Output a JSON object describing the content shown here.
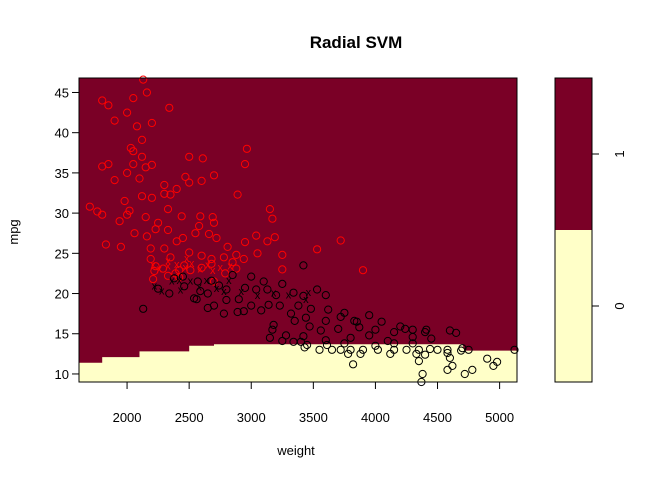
{
  "chart_data": {
    "type": "scatter",
    "title": "Radial SVM",
    "xlabel": "weight",
    "ylabel": "mpg",
    "xlim": [
      1613,
      5140
    ],
    "ylim": [
      9.0,
      46.8
    ],
    "x_ticks": [
      "2000",
      "2500",
      "3000",
      "3500",
      "4000",
      "4500",
      "5000"
    ],
    "y_ticks": [
      "10",
      "15",
      "20",
      "25",
      "30",
      "35",
      "40",
      "45"
    ],
    "grid": false,
    "colors": {
      "class_1_region": "#7a0026",
      "class_0_region": "#ffffc8",
      "class_1_points": "#ff0000",
      "class_0_points": "#000000"
    },
    "decision_boundary": [
      [
        1613,
        11.4
      ],
      [
        1800,
        11.4
      ],
      [
        1800,
        12.1
      ],
      [
        2100,
        12.1
      ],
      [
        2100,
        12.8
      ],
      [
        2500,
        12.8
      ],
      [
        2500,
        13.5
      ],
      [
        2700,
        13.5
      ],
      [
        2700,
        13.7
      ],
      [
        4700,
        13.7
      ],
      [
        4720,
        12.9
      ],
      [
        5140,
        12.9
      ]
    ],
    "colorbar": {
      "labels": [
        "0",
        "1"
      ],
      "split_fraction": 0.5
    },
    "series": [
      {
        "label": "1",
        "support_vectors": "x",
        "points": [
          [
            1800,
            44
          ],
          [
            1850,
            43.4
          ],
          [
            1900,
            41.5
          ],
          [
            2050,
            44.3
          ],
          [
            2130,
            46.6
          ],
          [
            2160,
            45
          ],
          [
            2000,
            42.5
          ],
          [
            2080,
            40.8
          ],
          [
            2120,
            39.1
          ],
          [
            2200,
            41.2
          ],
          [
            2340,
            43.1
          ],
          [
            2030,
            38.1
          ],
          [
            2050,
            37.7
          ],
          [
            2120,
            37
          ],
          [
            1850,
            36.1
          ],
          [
            1800,
            35.8
          ],
          [
            1900,
            34.1
          ],
          [
            2000,
            35
          ],
          [
            2050,
            36.1
          ],
          [
            2100,
            34.3
          ],
          [
            2150,
            35.7
          ],
          [
            2200,
            36
          ],
          [
            2500,
            37
          ],
          [
            2610,
            36.8
          ],
          [
            2950,
            36.1
          ],
          [
            2965,
            38
          ],
          [
            2470,
            34.5
          ],
          [
            2500,
            33.8
          ],
          [
            2600,
            34
          ],
          [
            2700,
            34.7
          ],
          [
            2300,
            33.5
          ],
          [
            2400,
            33
          ],
          [
            2120,
            32.1
          ],
          [
            2200,
            31.9
          ],
          [
            2300,
            32.4
          ],
          [
            2350,
            32.3
          ],
          [
            1980,
            31.5
          ],
          [
            2020,
            30.3
          ],
          [
            2000,
            29.8
          ],
          [
            1940,
            29
          ],
          [
            1800,
            29.8
          ],
          [
            1760,
            30.2
          ],
          [
            1700,
            30.8
          ],
          [
            2150,
            29.5
          ],
          [
            2250,
            28.8
          ],
          [
            2330,
            30.5
          ],
          [
            2440,
            29.6
          ],
          [
            2590,
            29.6
          ],
          [
            2580,
            28.4
          ],
          [
            2690,
            29.5
          ],
          [
            2700,
            28.8
          ],
          [
            2890,
            32.3
          ],
          [
            3150,
            30.5
          ],
          [
            3170,
            29.3
          ],
          [
            3190,
            27
          ],
          [
            3130,
            26.5
          ],
          [
            2060,
            27.5
          ],
          [
            2160,
            27.1
          ],
          [
            2230,
            28
          ],
          [
            2330,
            27.9
          ],
          [
            2400,
            26.5
          ],
          [
            2450,
            26.9
          ],
          [
            2550,
            27.5
          ],
          [
            2660,
            27.4
          ],
          [
            2720,
            26.9
          ],
          [
            2810,
            25.8
          ],
          [
            2950,
            26.4
          ],
          [
            3040,
            27.2
          ],
          [
            1830,
            26.1
          ],
          [
            1950,
            25.8
          ],
          [
            2190,
            25.6
          ],
          [
            2300,
            25.6
          ],
          [
            2350,
            24.5
          ],
          [
            2500,
            25.1
          ],
          [
            2600,
            24.7
          ],
          [
            2680,
            24.3
          ],
          [
            2780,
            24.5
          ],
          [
            2880,
            24.8
          ],
          [
            2940,
            24.3
          ],
          [
            3050,
            25
          ],
          [
            3250,
            24.8
          ],
          [
            3530,
            25.5
          ],
          [
            3720,
            26.6
          ],
          [
            2190,
            24.3
          ],
          [
            2230,
            23.4
          ],
          [
            2290,
            23.1
          ],
          [
            2460,
            23.5
          ],
          [
            2600,
            23.2
          ],
          [
            2680,
            23.7
          ],
          [
            2790,
            22.5
          ],
          [
            2850,
            23.9
          ],
          [
            2220,
            22.8
          ],
          [
            2420,
            22.9
          ],
          [
            2510,
            22.9
          ],
          [
            2880,
            23.1
          ],
          [
            3250,
            23
          ],
          [
            3900,
            22.9
          ],
          [
            2210,
            21.8
          ],
          [
            2330,
            22.2
          ],
          [
            2390,
            22.5
          ],
          [
            2420,
            22
          ],
          [
            2700,
            21.5
          ]
        ]
      },
      {
        "label": "0",
        "support_vectors": "x",
        "points": [
          [
            2380,
            21.9
          ],
          [
            2450,
            22.1
          ],
          [
            2570,
            21.5
          ],
          [
            2680,
            21.6
          ],
          [
            2850,
            22.3
          ],
          [
            3000,
            22.1
          ],
          [
            3100,
            21.5
          ],
          [
            3250,
            21.2
          ],
          [
            3420,
            23.5
          ],
          [
            2250,
            20.6
          ],
          [
            2340,
            20
          ],
          [
            2460,
            20.9
          ],
          [
            2540,
            19.4
          ],
          [
            2590,
            20.3
          ],
          [
            2650,
            20
          ],
          [
            2740,
            21
          ],
          [
            2800,
            20.5
          ],
          [
            2950,
            20.7
          ],
          [
            3040,
            20.5
          ],
          [
            3130,
            20.5
          ],
          [
            3200,
            19.8
          ],
          [
            3340,
            20.1
          ],
          [
            3420,
            19.7
          ],
          [
            3530,
            20.5
          ],
          [
            3600,
            19.8
          ],
          [
            2560,
            19.3
          ],
          [
            2700,
            18.5
          ],
          [
            2800,
            19.2
          ],
          [
            2900,
            19.3
          ],
          [
            3000,
            18.5
          ],
          [
            3140,
            18.6
          ],
          [
            3230,
            18.5
          ],
          [
            3380,
            18.5
          ],
          [
            3480,
            18.1
          ],
          [
            3620,
            18
          ],
          [
            3750,
            17.6
          ],
          [
            3850,
            16.5
          ],
          [
            3950,
            17.3
          ],
          [
            2130,
            18.1
          ],
          [
            2650,
            18.2
          ],
          [
            2780,
            17.5
          ],
          [
            2890,
            17.7
          ],
          [
            2940,
            17.8
          ],
          [
            3080,
            17.9
          ],
          [
            3320,
            17.5
          ],
          [
            3440,
            17
          ],
          [
            3600,
            16.6
          ],
          [
            3720,
            17.1
          ],
          [
            3830,
            16.6
          ],
          [
            4050,
            16.5
          ],
          [
            4200,
            15.9
          ],
          [
            4300,
            15.5
          ],
          [
            4410,
            15.5
          ],
          [
            3180,
            16.1
          ],
          [
            3350,
            16.6
          ],
          [
            3470,
            15.9
          ],
          [
            3560,
            15.4
          ],
          [
            3700,
            15.6
          ],
          [
            3870,
            15.8
          ],
          [
            4000,
            15.5
          ],
          [
            4150,
            15.2
          ],
          [
            4240,
            15.6
          ],
          [
            4400,
            15.2
          ],
          [
            3170,
            15.5
          ],
          [
            3280,
            14.8
          ],
          [
            3420,
            14.7
          ],
          [
            3600,
            14.2
          ],
          [
            3800,
            14.5
          ],
          [
            3950,
            14.8
          ],
          [
            4100,
            14.1
          ],
          [
            4300,
            14.6
          ],
          [
            4450,
            14.4
          ],
          [
            4600,
            15.4
          ],
          [
            4650,
            15.1
          ],
          [
            3250,
            14.1
          ],
          [
            3400,
            14
          ],
          [
            3750,
            13.8
          ],
          [
            4000,
            13.5
          ],
          [
            4150,
            13.8
          ],
          [
            4300,
            13.8
          ],
          [
            4440,
            13.1
          ],
          [
            4580,
            13
          ],
          [
            4700,
            13.2
          ],
          [
            3430,
            13.3
          ],
          [
            3550,
            13
          ],
          [
            3650,
            13
          ],
          [
            3720,
            13
          ],
          [
            3800,
            13
          ],
          [
            3900,
            13
          ],
          [
            4020,
            13
          ],
          [
            4150,
            13
          ],
          [
            4250,
            13
          ],
          [
            4350,
            13
          ],
          [
            4500,
            13
          ],
          [
            4580,
            12.6
          ],
          [
            4690,
            12.9
          ],
          [
            4750,
            13
          ],
          [
            3820,
            11.2
          ],
          [
            4350,
            11.6
          ],
          [
            4600,
            12
          ],
          [
            4620,
            11
          ],
          [
            4900,
            11.9
          ],
          [
            4950,
            11
          ],
          [
            5120,
            13
          ],
          [
            4720,
            10
          ],
          [
            4380,
            10
          ],
          [
            4370,
            9
          ],
          [
            3150,
            14.5
          ],
          [
            3340,
            14
          ],
          [
            3450,
            13.6
          ],
          [
            3610,
            13.6
          ],
          [
            3780,
            12.5
          ],
          [
            3880,
            12.5
          ],
          [
            4120,
            12.5
          ],
          [
            4330,
            12.5
          ],
          [
            4580,
            10.5
          ],
          [
            4780,
            10.5
          ],
          [
            4980,
            11.5
          ],
          [
            4400,
            12.4
          ]
        ]
      }
    ],
    "support_vector_points": {
      "1": [
        [
          2210,
          23.6
        ],
        [
          2260,
          23.1
        ],
        [
          2330,
          23.5
        ],
        [
          2400,
          23.7
        ],
        [
          2470,
          23.3
        ],
        [
          2520,
          23.8
        ],
        [
          2590,
          23.1
        ],
        [
          2650,
          23.6
        ],
        [
          2690,
          22.9
        ],
        [
          2750,
          23.3
        ],
        [
          2830,
          23.5
        ],
        [
          2330,
          24.1
        ],
        [
          2480,
          24.4
        ]
      ],
      "0": [
        [
          2220,
          21
        ],
        [
          2280,
          20.4
        ],
        [
          2360,
          21.6
        ],
        [
          2420,
          21.7
        ],
        [
          2430,
          20.5
        ],
        [
          2510,
          21.6
        ],
        [
          2580,
          20.9
        ],
        [
          2640,
          21.7
        ],
        [
          2720,
          20.7
        ],
        [
          2780,
          20.3
        ],
        [
          2820,
          21.7
        ],
        [
          2920,
          20.3
        ],
        [
          3050,
          19.8
        ],
        [
          3180,
          20.1
        ],
        [
          3300,
          19.9
        ],
        [
          3440,
          19.3
        ],
        [
          3460,
          20.2
        ]
      ]
    }
  }
}
